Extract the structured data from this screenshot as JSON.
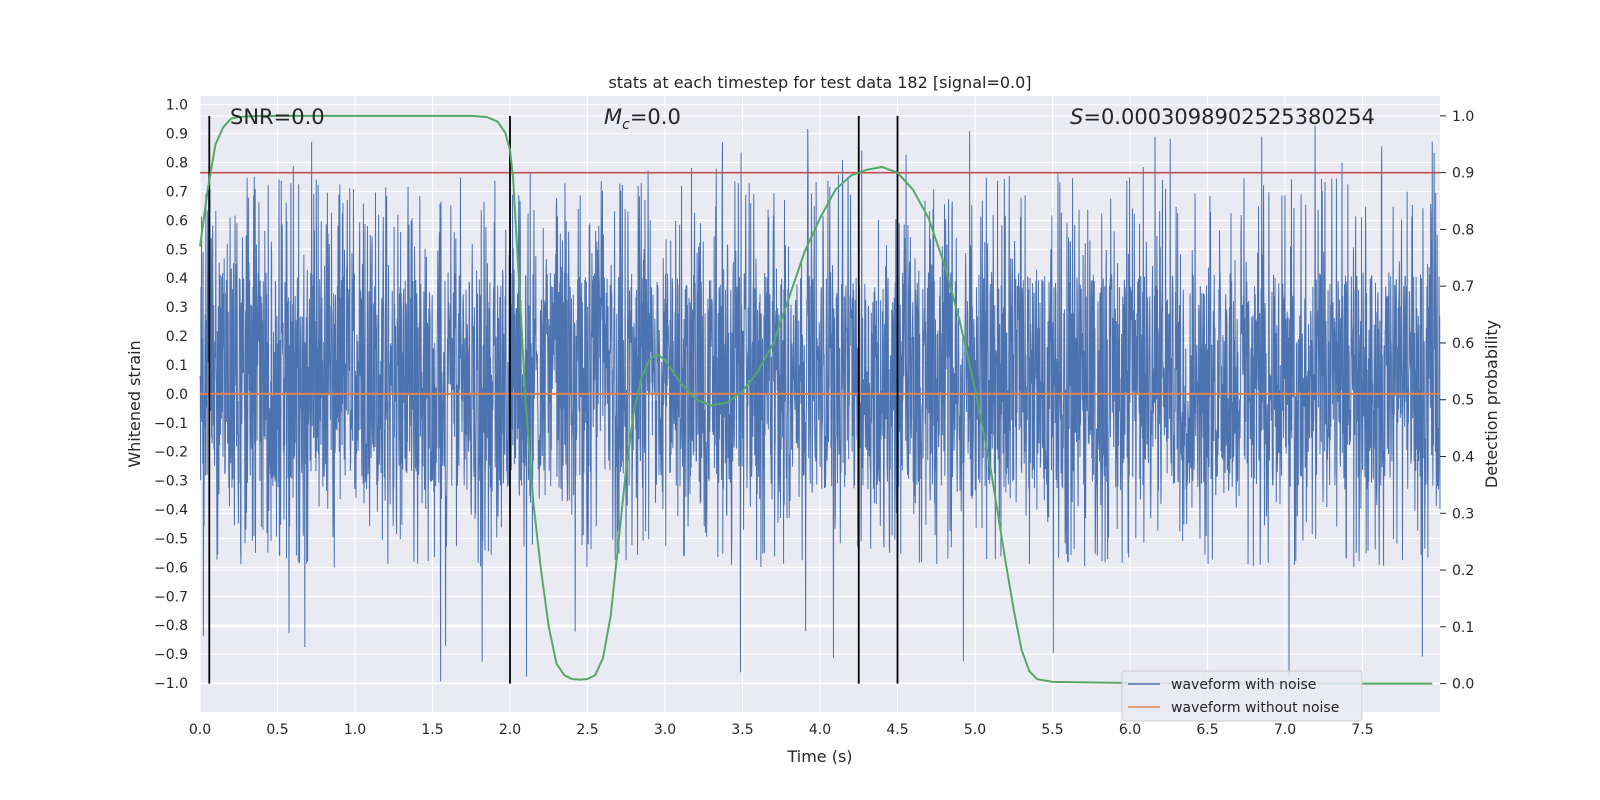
{
  "chart_data": {
    "type": "line",
    "title": "stats at each timestep for test data 182 [signal=0.0]",
    "xlabel": "Time (s)",
    "ylabel_left": "Whitened strain",
    "ylabel_right": "Detection probability",
    "xlim": [
      0.0,
      8.0
    ],
    "ylim_left": [
      -1.1,
      1.03
    ],
    "ylim_right": [
      -0.05,
      1.035
    ],
    "xticks": [
      0.0,
      0.5,
      1.0,
      1.5,
      2.0,
      2.5,
      3.0,
      3.5,
      4.0,
      4.5,
      5.0,
      5.5,
      6.0,
      6.5,
      7.0,
      7.5
    ],
    "yticks_left": [
      -1.0,
      -0.9,
      -0.8,
      -0.7,
      -0.6,
      -0.5,
      -0.4,
      -0.3,
      -0.2,
      -0.1,
      0.0,
      0.1,
      0.2,
      0.3,
      0.4,
      0.5,
      0.6,
      0.7,
      0.8,
      0.9,
      1.0
    ],
    "yticks_right": [
      0.0,
      0.1,
      0.2,
      0.3,
      0.4,
      0.5,
      0.6,
      0.7,
      0.8,
      0.9,
      1.0
    ],
    "grid": true,
    "legend_position": "bottom-right",
    "annotations": {
      "snr_prefix": "SNR=",
      "snr_value": "0.0",
      "mc_symbol": "M",
      "mc_sub": "c",
      "mc_suffix": "=0.0",
      "s_symbol": "S",
      "s_suffix": "=0.0003098902525380254"
    },
    "series": [
      {
        "name": "waveform with noise",
        "axis": "left",
        "color": "#4c72b0",
        "style": "noise",
        "core_range": [
          -0.33,
          0.42
        ],
        "typical_peak_range": [
          -0.6,
          0.75
        ],
        "extreme_min": -1.0,
        "extreme_max": 0.93
      },
      {
        "name": "waveform without noise",
        "axis": "left",
        "color": "#dd8452",
        "style": "line",
        "x": [
          0.0,
          8.0
        ],
        "y": [
          0.0,
          0.0
        ]
      },
      {
        "name": "detection probability",
        "axis": "right",
        "color": "#55a868",
        "style": "line",
        "x": [
          0.0,
          0.05,
          0.1,
          0.15,
          0.2,
          0.25,
          0.3,
          0.4,
          0.6,
          1.0,
          1.5,
          1.75,
          1.85,
          1.92,
          1.97,
          2.0,
          2.02,
          2.06,
          2.1,
          2.15,
          2.2,
          2.25,
          2.3,
          2.35,
          2.4,
          2.45,
          2.5,
          2.55,
          2.6,
          2.65,
          2.7,
          2.75,
          2.8,
          2.85,
          2.9,
          2.95,
          3.0,
          3.05,
          3.1,
          3.2,
          3.3,
          3.4,
          3.5,
          3.6,
          3.7,
          3.8,
          3.9,
          4.0,
          4.1,
          4.2,
          4.3,
          4.4,
          4.5,
          4.6,
          4.7,
          4.8,
          4.9,
          5.0,
          5.1,
          5.2,
          5.25,
          5.3,
          5.35,
          5.4,
          5.5,
          6.0,
          7.0,
          7.95
        ],
        "y": [
          0.77,
          0.87,
          0.95,
          0.98,
          0.995,
          0.998,
          0.999,
          1.0,
          1.0,
          1.0,
          1.0,
          1.0,
          0.998,
          0.99,
          0.97,
          0.94,
          0.89,
          0.7,
          0.5,
          0.32,
          0.2,
          0.1,
          0.035,
          0.015,
          0.008,
          0.007,
          0.008,
          0.015,
          0.045,
          0.12,
          0.25,
          0.38,
          0.48,
          0.54,
          0.57,
          0.58,
          0.57,
          0.55,
          0.53,
          0.5,
          0.49,
          0.495,
          0.515,
          0.55,
          0.6,
          0.68,
          0.76,
          0.82,
          0.87,
          0.895,
          0.905,
          0.91,
          0.9,
          0.87,
          0.82,
          0.74,
          0.64,
          0.52,
          0.38,
          0.21,
          0.13,
          0.06,
          0.022,
          0.008,
          0.003,
          0.001,
          0.0,
          0.0
        ]
      }
    ],
    "hlines": [
      {
        "axis": "right",
        "y": 0.9,
        "color": "#c44e52"
      }
    ],
    "vlines": [
      {
        "x": 0.06,
        "color": "#000000"
      },
      {
        "x": 2.0,
        "color": "#000000"
      },
      {
        "x": 4.25,
        "color": "#000000"
      },
      {
        "x": 4.5,
        "color": "#000000"
      }
    ]
  }
}
